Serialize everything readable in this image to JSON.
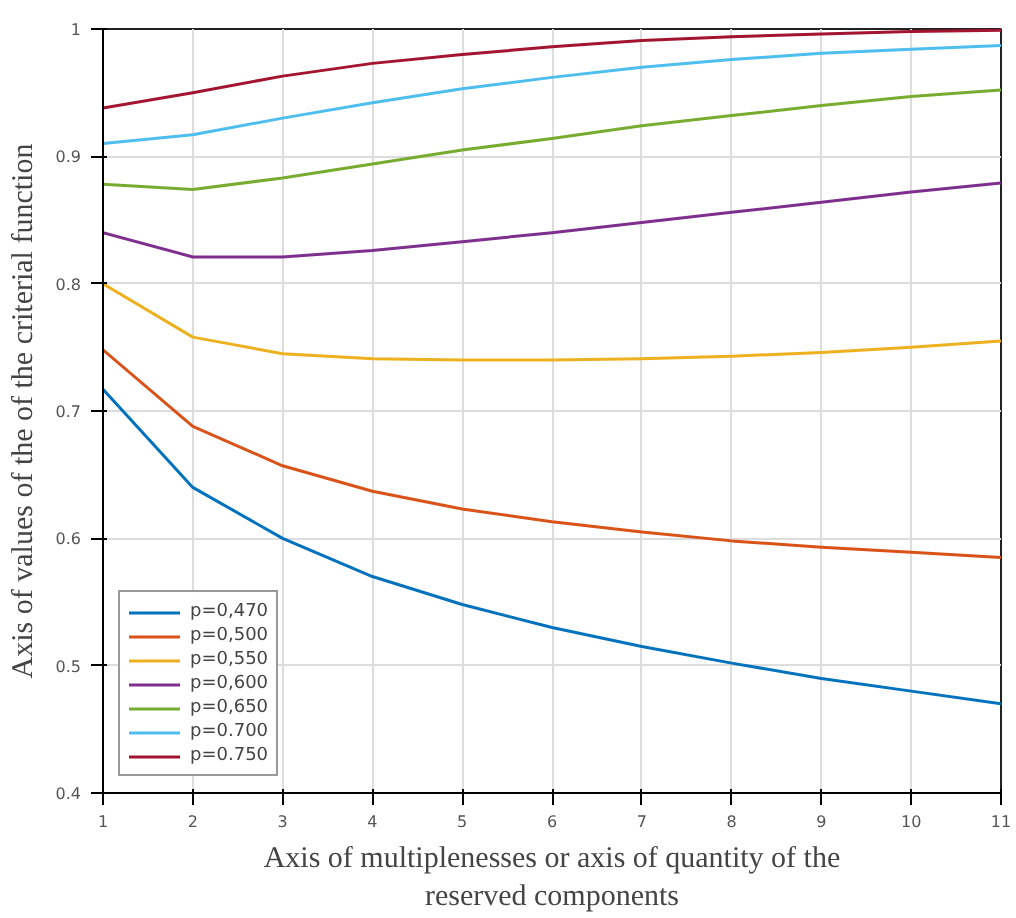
{
  "chart_data": {
    "type": "line",
    "xlabel": "Axis of multiplenesses or axis of quantity of the\nreserved components",
    "ylabel": "Axis of values of the of the criterial function",
    "x": [
      1,
      2,
      3,
      4,
      5,
      6,
      7,
      8,
      9,
      10,
      11
    ],
    "series": [
      {
        "name": "p=0,470",
        "color": "#0072bd",
        "values": [
          0.717,
          0.64,
          0.6,
          0.57,
          0.548,
          0.53,
          0.515,
          0.502,
          0.49,
          0.48,
          0.47
        ]
      },
      {
        "name": "p=0,500",
        "color": "#d95319",
        "values": [
          0.748,
          0.688,
          0.657,
          0.637,
          0.623,
          0.613,
          0.605,
          0.598,
          0.593,
          0.589,
          0.585
        ]
      },
      {
        "name": "p=0,550",
        "color": "#edb120",
        "values": [
          0.8,
          0.758,
          0.745,
          0.741,
          0.74,
          0.74,
          0.741,
          0.743,
          0.746,
          0.75,
          0.755
        ]
      },
      {
        "name": "p=0,600",
        "color": "#7e2f8e",
        "values": [
          0.84,
          0.821,
          0.821,
          0.826,
          0.833,
          0.84,
          0.848,
          0.856,
          0.864,
          0.872,
          0.879
        ]
      },
      {
        "name": "p=0,650",
        "color": "#77ac30",
        "values": [
          0.878,
          0.874,
          0.883,
          0.894,
          0.905,
          0.914,
          0.924,
          0.932,
          0.94,
          0.947,
          0.952
        ]
      },
      {
        "name": "p=0.700",
        "color": "#4dbeee",
        "values": [
          0.91,
          0.917,
          0.93,
          0.942,
          0.953,
          0.962,
          0.97,
          0.976,
          0.981,
          0.984,
          0.987
        ]
      },
      {
        "name": "p=0.750",
        "color": "#a2142f",
        "values": [
          0.938,
          0.95,
          0.963,
          0.973,
          0.98,
          0.986,
          0.991,
          0.994,
          0.996,
          0.998,
          0.999
        ]
      }
    ],
    "xlim": [
      1,
      11
    ],
    "xticks": [
      1,
      2,
      3,
      4,
      5,
      6,
      7,
      8,
      9,
      10,
      11
    ],
    "ylim": [
      0.4,
      1
    ],
    "yticks": [
      0.4,
      0.5,
      0.6,
      0.7,
      0.8,
      0.9,
      1
    ],
    "grid": true,
    "legend": "bottom left",
    "marker": "none",
    "line_style": "solid"
  }
}
